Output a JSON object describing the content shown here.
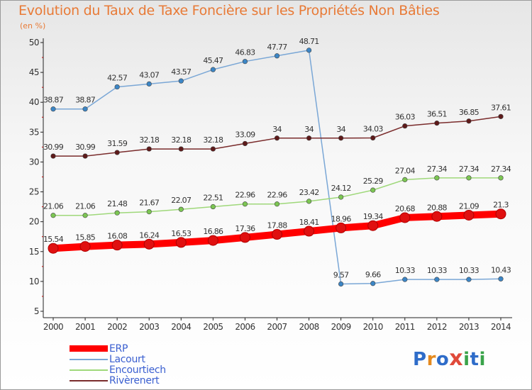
{
  "title": "Evolution du Taux de Taxe Foncière sur les Propriétés Non Bâties",
  "subtitle": "(en %)",
  "logo": {
    "letters": [
      "P",
      "r",
      "o",
      "x",
      "i",
      "t",
      "i"
    ],
    "colors": [
      "#2e6cc9",
      "#e58a1f",
      "#2e6cc9",
      "#e04a3a",
      "#3aa34a",
      "#2e6cc9",
      "#3aa34a"
    ]
  },
  "colors": {
    "title": "#e87a36",
    "axis": "#333333",
    "tick_text": "#333333",
    "legend_text": "#3a5fd0",
    "grid_tick": "#c00000"
  },
  "chart_data": {
    "type": "line",
    "title": "Evolution du Taux de Taxe Foncière sur les Propriétés Non Bâties",
    "ylabel": "(en %)",
    "xlabel": "",
    "ylim": [
      5,
      50
    ],
    "yticks": [
      5,
      10,
      15,
      20,
      25,
      30,
      35,
      40,
      45,
      50
    ],
    "x": [
      "2000",
      "2001",
      "2002",
      "2003",
      "2004",
      "2005",
      "2006",
      "2007",
      "2008",
      "2009",
      "2010",
      "2011",
      "2012",
      "2013",
      "2014"
    ],
    "legend_position": "bottom-left",
    "series": [
      {
        "name": "ERP",
        "color": "#ff0000",
        "marker": "#e01010",
        "values": [
          15.54,
          15.85,
          16.08,
          16.24,
          16.53,
          16.86,
          17.36,
          17.88,
          18.41,
          18.96,
          19.34,
          20.68,
          20.88,
          21.09,
          21.3
        ],
        "labels": [
          "15.54",
          "15.85",
          "16.08",
          "16.24",
          "16.53",
          "16.86",
          "17.36",
          "17.88",
          "18.41",
          "18.96",
          "19.34",
          "20.68",
          "20.88",
          "21.09",
          "21.3"
        ]
      },
      {
        "name": "Lacourt",
        "color": "#7aa7d6",
        "marker": "#3c86c6",
        "values": [
          38.87,
          38.87,
          42.57,
          43.07,
          43.57,
          45.47,
          46.83,
          47.77,
          48.71,
          9.57,
          9.66,
          10.33,
          10.33,
          10.33,
          10.43
        ],
        "labels": [
          "38.87",
          "38.87",
          "42.57",
          "43.07",
          "43.57",
          "45.47",
          "46.83",
          "47.77",
          "48.71",
          "9.57",
          "9.66",
          "10.33",
          "10.33",
          "10.33",
          "10.43"
        ]
      },
      {
        "name": "Encourtiech",
        "color": "#9fd87a",
        "marker": "#7cc653",
        "values": [
          21.06,
          21.06,
          21.48,
          21.67,
          22.07,
          22.51,
          22.96,
          22.96,
          23.42,
          24.12,
          25.29,
          27.04,
          27.34,
          27.34,
          27.34
        ],
        "labels": [
          "21.06",
          "21.06",
          "21.48",
          "21.67",
          "22.07",
          "22.51",
          "22.96",
          "22.96",
          "23.42",
          "24.12",
          "25.29",
          "27.04",
          "27.34",
          "27.34",
          "27.34"
        ]
      },
      {
        "name": "Rivèrenert",
        "color": "#7a2c2c",
        "marker": "#5e1a1a",
        "values": [
          30.99,
          30.99,
          31.59,
          32.18,
          32.18,
          32.18,
          33.09,
          34,
          34,
          34,
          34.03,
          36.03,
          36.51,
          36.85,
          37.61
        ],
        "labels": [
          "30.99",
          "30.99",
          "31.59",
          "32.18",
          "32.18",
          "32.18",
          "33.09",
          "34",
          "34",
          "34",
          "34.03",
          "36.03",
          "36.51",
          "36.85",
          "37.61"
        ]
      }
    ]
  }
}
